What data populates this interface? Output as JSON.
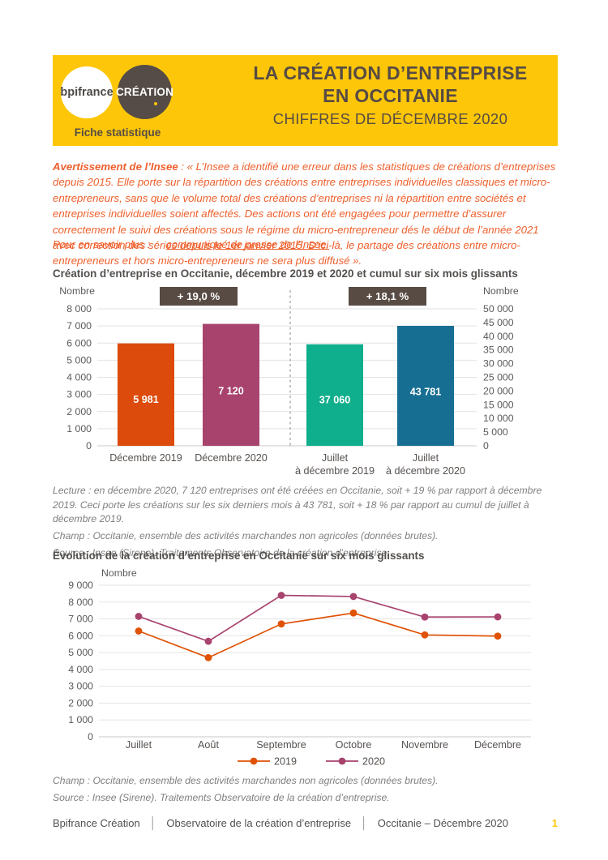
{
  "header": {
    "logo_primary": "bpifrance",
    "logo_secondary": "CRÉATION",
    "tagline": "Fiche statistique",
    "title_line1": "LA CRÉATION D’ENTREPRISE",
    "title_line2": "EN OCCITANIE",
    "subtitle": "CHIFFRES DE DÉCEMBRE 2020"
  },
  "notice": {
    "lead": "Avertissement de l’Insee",
    "body": " : « L’Insee a identifié une erreur dans les statistiques de créations d’entreprises depuis 2015. Elle porte sur la répartition des créations entre entreprises individuelles classiques et micro-entrepreneurs, sans que le volume total des créations d’entreprises ni la répartition entre sociétés et entreprises individuelles soient affectés. Des actions ont été engagées pour permettre d’assurer correctement le suivi des créations sous le régime du micro-entrepreneur dés le début de l’année 2021 avec correction des séries depuis le 1er janvier 2015. D’ici-là, le partage des créations entre micro-entrepreneurs et hors micro-entrepreneurs ne sera plus diffusé ».",
    "more_label": "Pour en savoir plus :",
    "link_label": "communiqué de presse de l’Insee."
  },
  "chart_data": [
    {
      "type": "bar",
      "title": "Création d’entreprise en Occitanie, décembre 2019 et 2020 et cumul sur six mois glissants",
      "left_axis": {
        "label": "Nombre",
        "min": 0,
        "max": 8000,
        "step": 1000
      },
      "right_axis": {
        "label": "Nombre",
        "min": 0,
        "max": 50000,
        "step": 5000
      },
      "grid": true,
      "badges": [
        {
          "label": "+ 19,0 %"
        },
        {
          "label": "+ 18,1 %"
        }
      ],
      "badge_color": "#574B44",
      "bars": [
        {
          "label_lines": [
            "Décembre 2019"
          ],
          "value": 5981,
          "display": "5 981",
          "axis": "left",
          "color": "#DC4B0C"
        },
        {
          "label_lines": [
            "Décembre 2020"
          ],
          "value": 7120,
          "display": "7 120",
          "axis": "left",
          "color": "#A8436E"
        },
        {
          "label_lines": [
            "Juillet",
            "à décembre 2019"
          ],
          "value": 37060,
          "display": "37 060",
          "axis": "right",
          "color": "#0FAE8C"
        },
        {
          "label_lines": [
            "Juillet",
            "à décembre 2020"
          ],
          "value": 43781,
          "display": "43 781",
          "axis": "right",
          "color": "#176E93"
        }
      ],
      "notes": [
        "Lecture : en décembre 2020, 7 120 entreprises ont été créées en Occitanie, soit + 19 % par rapport à décembre 2019. Ceci porte les créations sur les six derniers mois à 43 781, soit + 18 % par rapport au cumul de juillet à décembre 2019.",
        "Champ : Occitanie, ensemble des activités marchandes non agricoles (données brutes).",
        "Source : Insee (Sirene). Traitements Observatoire de la création d’entreprise."
      ]
    },
    {
      "type": "line",
      "title": "Évolution de la création d’entreprise en Occitanie sur six mois glissants",
      "y_axis": {
        "label": "Nombre",
        "min": 0,
        "max": 9000,
        "step": 1000
      },
      "categories": [
        "Juillet",
        "Août",
        "Septembre",
        "Octobre",
        "Novembre",
        "Décembre"
      ],
      "series": [
        {
          "name": "2019",
          "color": "#E05206",
          "values": [
            6280,
            4700,
            6700,
            7350,
            6050,
            5981
          ]
        },
        {
          "name": "2020",
          "color": "#A8436E",
          "values": [
            7150,
            5670,
            8400,
            8330,
            7110,
            7120
          ]
        }
      ],
      "legend_position": "bottom",
      "grid": true,
      "notes": [
        "Champ : Occitanie, ensemble des activités marchandes non agricoles (données brutes).",
        "Source : Insee (Sirene). Traitements Observatoire de la création d’entreprise."
      ]
    }
  ],
  "footer": {
    "items": [
      "Bpifrance Création",
      "Observatoire de la création d’entreprise",
      "Occitanie – Décembre 2020"
    ],
    "separator": "│",
    "page_number": "1"
  },
  "colors": {
    "brand_yellow": "#FDC608",
    "dark_brown": "#574B44",
    "notice_orange": "#EE5F2B",
    "page_number_yellow": "#FDC608"
  }
}
